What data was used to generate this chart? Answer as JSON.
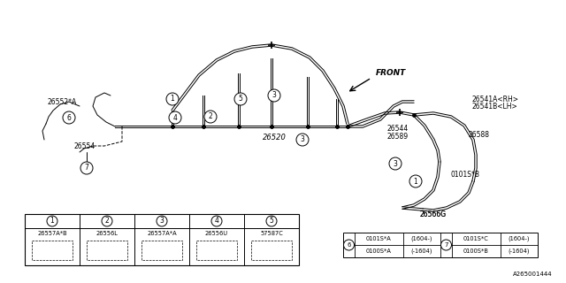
{
  "bg_color": "#ffffff",
  "line_color": "#000000",
  "part_number": "A265001444",
  "main_label": "26520",
  "front_label": "FRONT",
  "label_26552A": "26552*A",
  "label_26554": "26554",
  "label_26541A": "26541A<RH>",
  "label_26541B": "26541B<LH>",
  "label_26544": "26544",
  "label_26589": "26589",
  "label_26588a": "26588",
  "label_26588b": "26588",
  "label_26566G": "26566G",
  "label_0101SB": "0101S*B",
  "callout_1": "26557A*B",
  "callout_2": "26556L",
  "callout_3": "26557A*A",
  "callout_4": "26556U",
  "callout_5": "57587C",
  "t2_6_top_a": "0100S*A",
  "t2_6_top_b": "(-1604)",
  "t2_6_bot_a": "0101S*A",
  "t2_6_bot_b": "(1604-)",
  "t2_7_top_a": "0100S*B",
  "t2_7_top_b": "(-1604)",
  "t2_7_bot_a": "0101S*C",
  "t2_7_bot_b": "(1604-)"
}
